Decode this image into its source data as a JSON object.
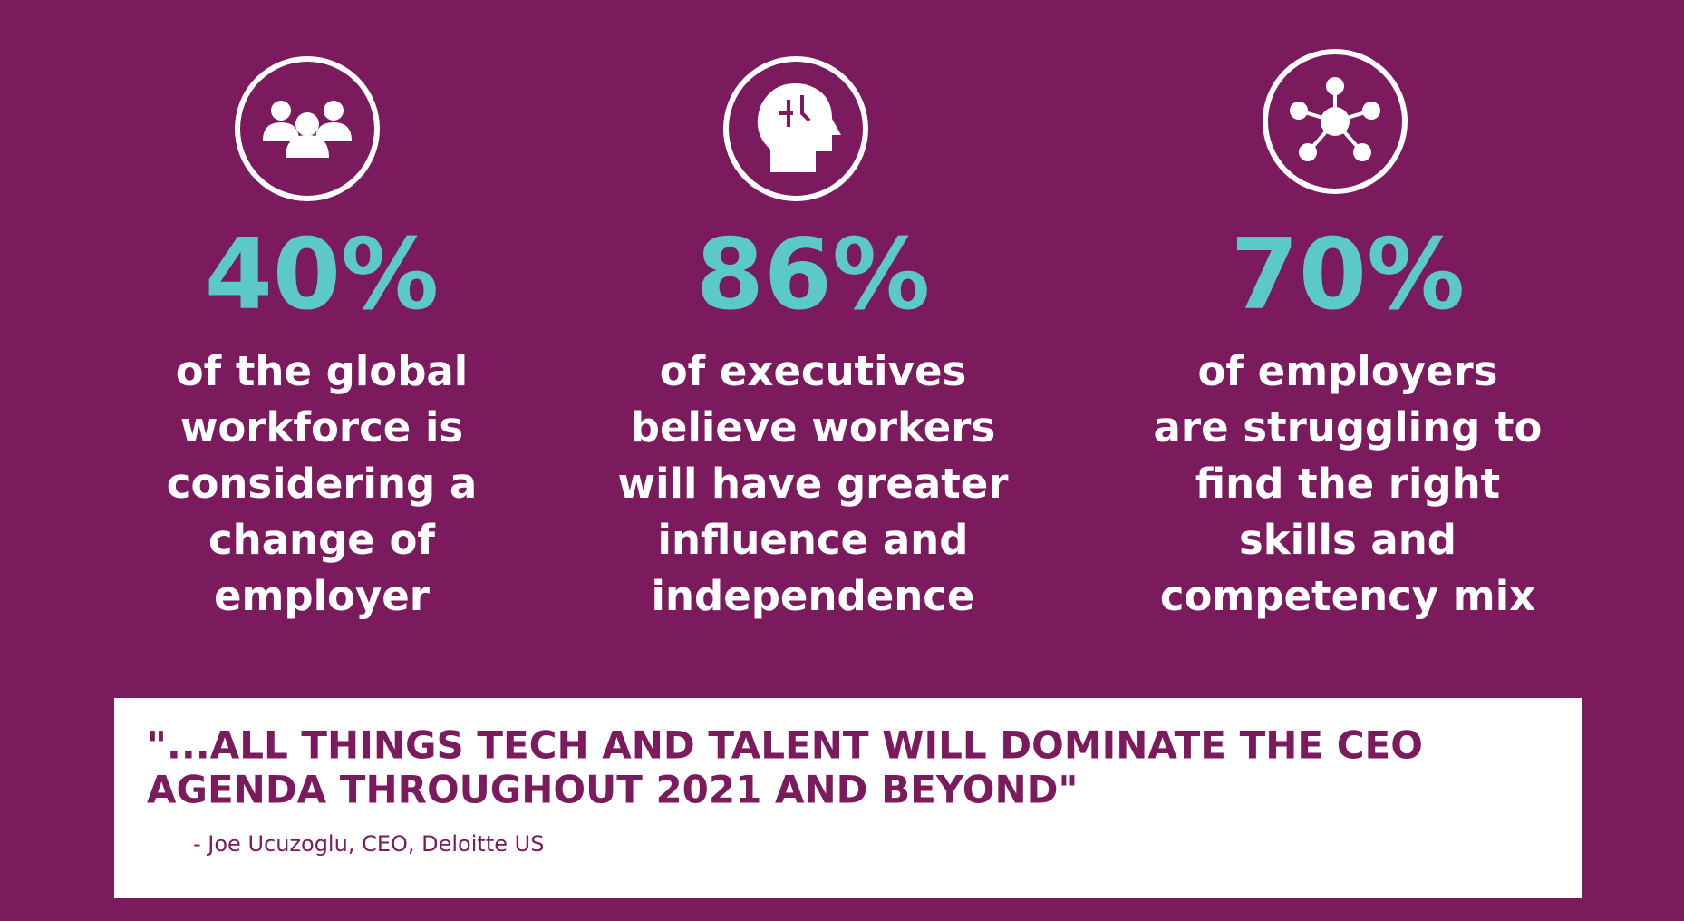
{
  "stats": [
    {
      "value": "40%",
      "lines": [
        "of the global",
        "workforce is",
        "considering a",
        "change of",
        "employer"
      ]
    },
    {
      "value": "86%",
      "lines": [
        "of executives",
        "believe workers",
        "will have greater",
        "influence and",
        "independence"
      ]
    },
    {
      "value": "70%",
      "lines": [
        "of employers",
        "are struggling to",
        "find the right",
        "skills and",
        "competency mix"
      ]
    }
  ],
  "quote": {
    "lines": [
      "\"...ALL THINGS TECH AND TALENT WILL DOMINATE THE CEO",
      "AGENDA THROUGHOUT 2021 AND BEYOND\""
    ],
    "attribution": "- Joe Ucuzoglu, CEO, Deloitte US"
  }
}
